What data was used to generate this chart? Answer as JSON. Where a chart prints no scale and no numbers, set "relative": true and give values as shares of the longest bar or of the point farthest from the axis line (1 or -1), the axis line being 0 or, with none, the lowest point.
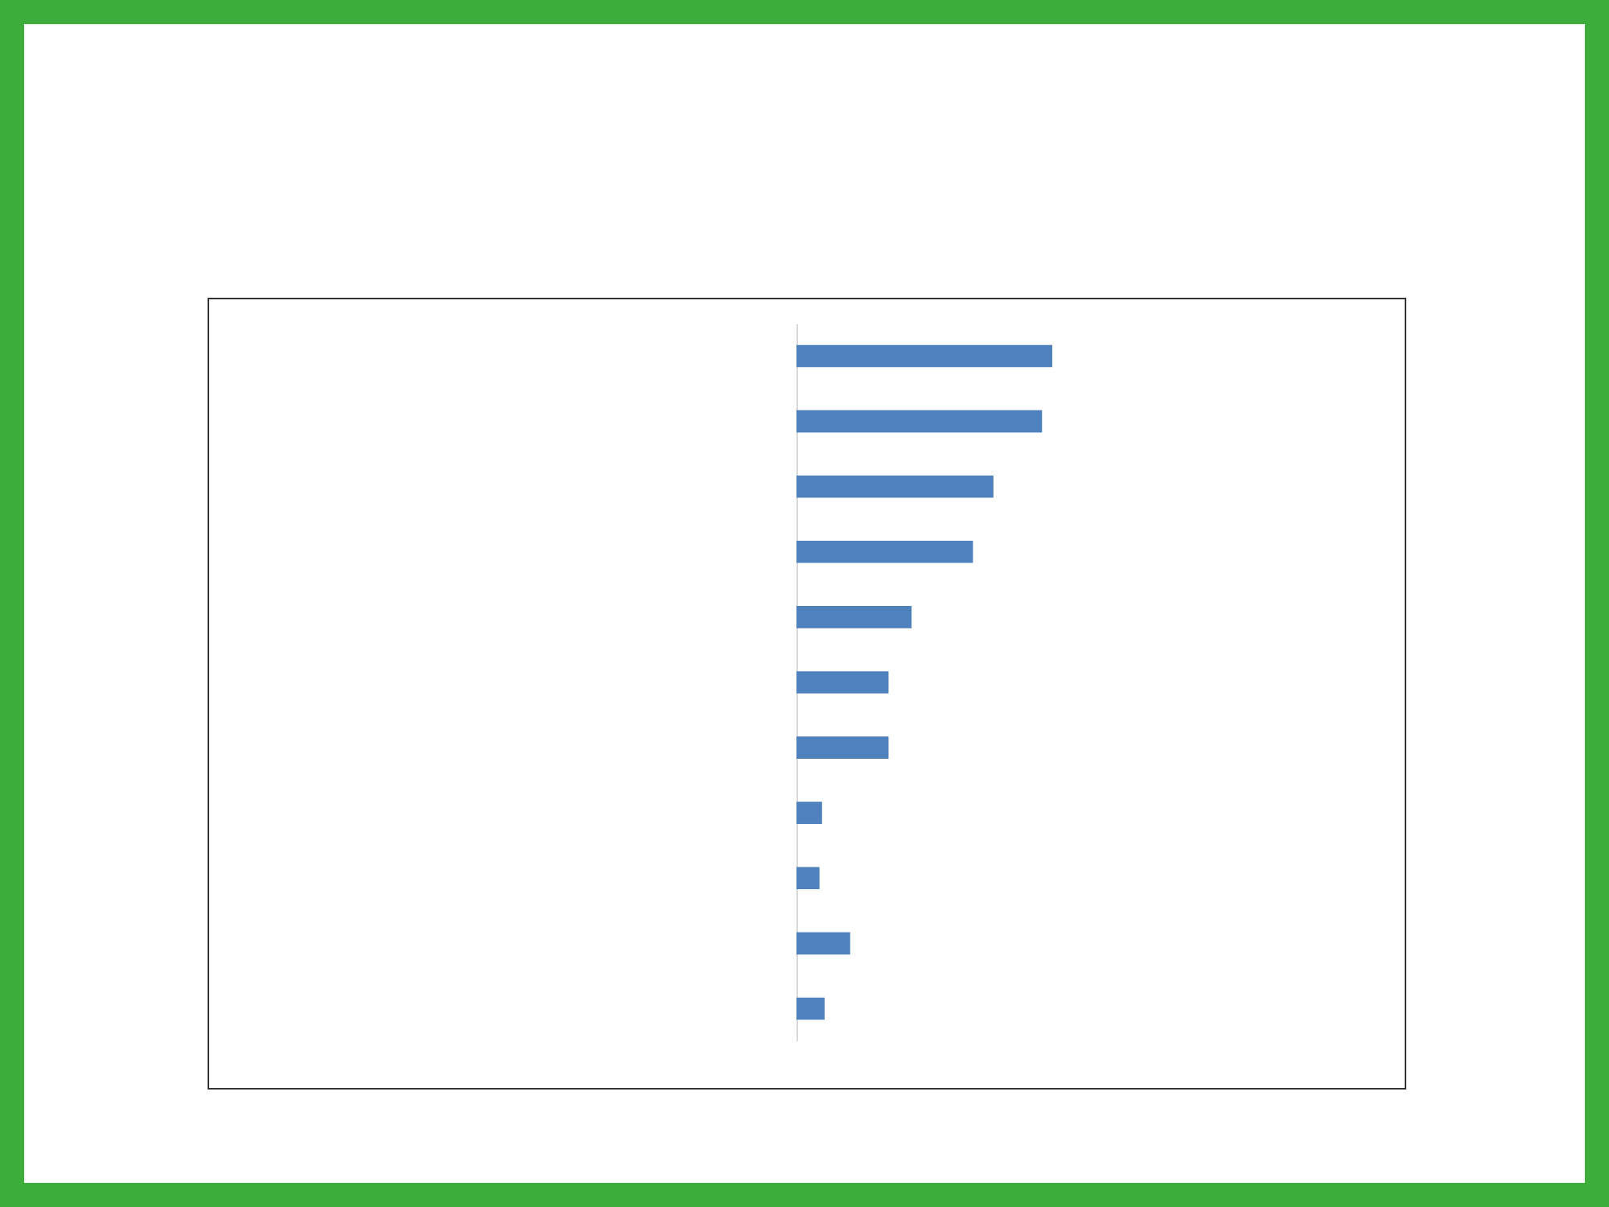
{
  "chart_data": {
    "type": "bar",
    "orientation": "horizontal",
    "relative": true,
    "categories": [
      null,
      null,
      null,
      null,
      null,
      null,
      null,
      null,
      null,
      null,
      null
    ],
    "values": [
      1,
      0.96,
      0.77,
      0.69,
      0.45,
      0.36,
      0.36,
      0.1,
      0.09,
      0.21,
      0.11
    ],
    "color": "#4f81bd",
    "tick_labels": false
  }
}
